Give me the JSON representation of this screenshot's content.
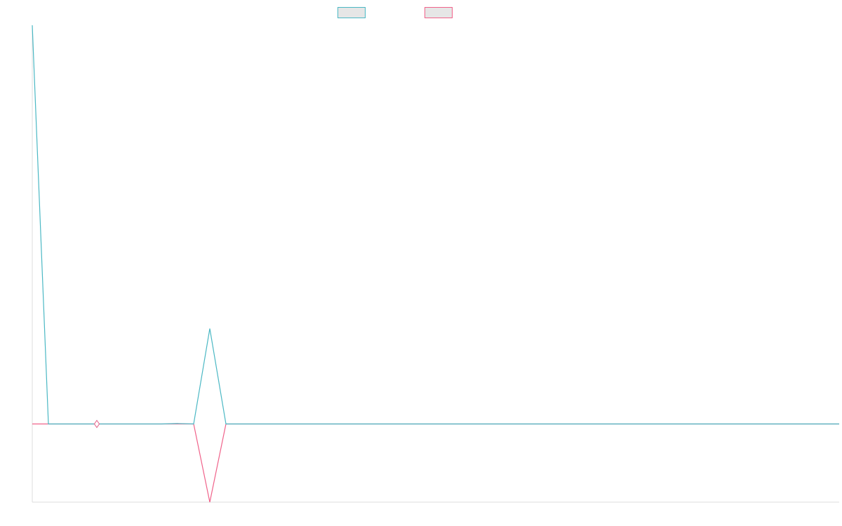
{
  "colors": {
    "series_a": "#4bb8c4",
    "series_b": "#f0628a",
    "legend_fill": "#e6e6e6",
    "axis": "#dddddd"
  },
  "chart_data": {
    "type": "line",
    "title": "",
    "xlabel": "",
    "ylabel": "",
    "x": [
      0,
      1,
      2,
      3,
      4,
      5,
      6,
      7,
      8,
      9,
      10,
      11,
      12,
      13,
      14,
      15,
      16,
      17,
      18,
      19,
      20,
      21,
      22,
      23,
      24,
      25,
      26,
      27,
      28,
      29,
      30,
      31,
      32,
      33,
      34,
      35,
      36,
      37,
      38,
      39,
      40,
      41,
      42,
      43,
      44,
      45,
      46,
      47,
      48,
      49,
      50
    ],
    "series": [
      {
        "color": "#4bb8c4",
        "values": [
          5.1,
          0,
          0,
          0,
          0,
          0,
          0,
          0,
          0,
          0.006,
          0,
          1.22,
          0,
          0,
          0,
          0,
          0,
          0,
          0,
          0,
          0,
          0,
          0,
          0,
          0,
          0,
          0,
          0,
          0,
          0,
          0,
          0,
          0,
          0,
          0,
          0,
          0,
          0,
          0,
          0,
          0,
          0,
          0,
          0,
          0,
          0,
          0,
          0,
          0,
          0,
          0
        ]
      },
      {
        "color": "#f0628a",
        "values": [
          0,
          0,
          0,
          0,
          0,
          0,
          0,
          0,
          0,
          0,
          0,
          -1,
          0,
          0,
          0,
          0,
          0,
          0,
          0,
          0,
          0,
          0,
          0,
          0,
          0,
          0,
          0,
          0,
          0,
          0,
          0,
          0,
          0,
          0,
          0,
          0,
          0,
          0,
          0,
          0,
          0,
          0,
          0,
          0,
          0,
          0,
          0,
          0,
          0,
          0,
          0
        ]
      }
    ],
    "ylim": [
      -1,
      5.1
    ],
    "xlim": [
      0,
      50
    ],
    "grid": false,
    "legend": "top-center"
  }
}
